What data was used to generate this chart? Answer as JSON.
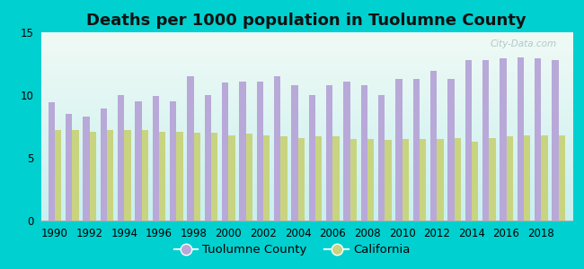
{
  "title": "Deaths per 1000 population in Tuolumne County",
  "years": [
    1990,
    1991,
    1992,
    1993,
    1994,
    1995,
    1996,
    1997,
    1998,
    1999,
    2000,
    2001,
    2002,
    2003,
    2004,
    2005,
    2006,
    2007,
    2008,
    2009,
    2010,
    2011,
    2012,
    2013,
    2014,
    2015,
    2016,
    2017,
    2018,
    2019
  ],
  "tuolumne": [
    9.4,
    8.5,
    8.3,
    8.9,
    10.0,
    9.5,
    9.9,
    9.5,
    11.5,
    10.0,
    11.0,
    11.1,
    11.1,
    11.5,
    10.8,
    10.0,
    10.8,
    11.1,
    10.8,
    10.0,
    11.3,
    11.3,
    11.9,
    11.3,
    12.8,
    12.8,
    12.9,
    13.0,
    12.9,
    12.8
  ],
  "california": [
    7.2,
    7.2,
    7.1,
    7.2,
    7.2,
    7.2,
    7.1,
    7.1,
    7.0,
    7.0,
    6.8,
    6.9,
    6.8,
    6.7,
    6.6,
    6.7,
    6.7,
    6.5,
    6.5,
    6.4,
    6.5,
    6.5,
    6.5,
    6.6,
    6.3,
    6.6,
    6.7,
    6.8,
    6.8,
    6.8
  ],
  "tuolumne_color": "#b8a9d9",
  "california_color": "#c8d480",
  "bg_outer": "#00d0d0",
  "bg_plot_grad_top": "#f0faf5",
  "bg_plot_grad_bottom": "#c8f0f0",
  "ylim": [
    0,
    15
  ],
  "yticks": [
    0,
    5,
    10,
    15
  ],
  "bar_width": 0.38,
  "title_fontsize": 13,
  "tick_fontsize": 8.5,
  "legend_fontsize": 9.5,
  "watermark": "City-Data.com"
}
